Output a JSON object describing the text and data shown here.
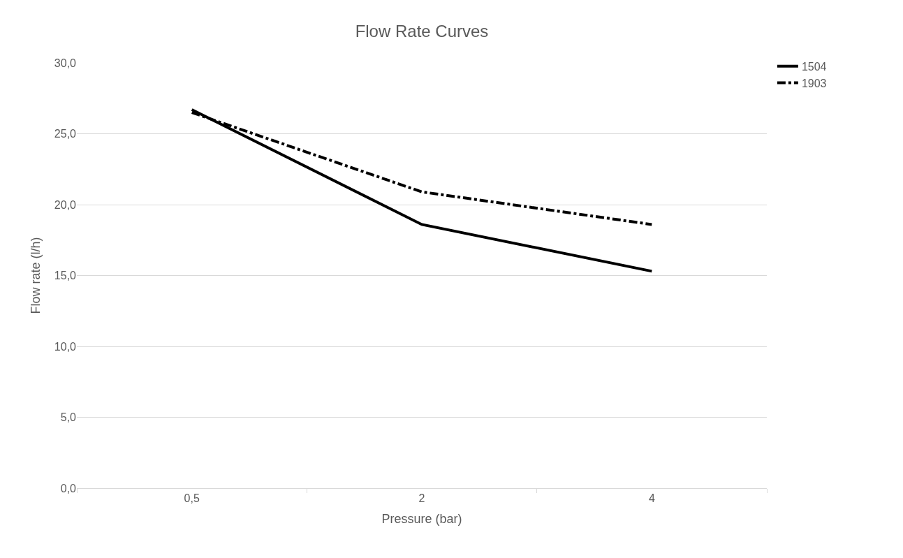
{
  "chart_data": {
    "type": "line",
    "title": "Flow Rate Curves",
    "xlabel": "Pressure (bar)",
    "ylabel": "Flow rate (l/h)",
    "categories": [
      "0,5",
      "2",
      "4"
    ],
    "series": [
      {
        "name": "1504",
        "color": "#000000",
        "values": [
          26.7,
          18.6,
          15.3
        ],
        "line_style": "solid"
      },
      {
        "name": "1903",
        "color": "#000000",
        "values": [
          26.5,
          20.9,
          18.6
        ],
        "line_style": "dashdot"
      }
    ],
    "ylim": [
      0,
      30
    ],
    "yticks": [
      {
        "value": 0,
        "label": "0,0"
      },
      {
        "value": 5,
        "label": "5,0"
      },
      {
        "value": 10,
        "label": "10,0"
      },
      {
        "value": 15,
        "label": "15,0"
      },
      {
        "value": 20,
        "label": "20,0"
      },
      {
        "value": 25,
        "label": "25,0"
      },
      {
        "value": 30,
        "label": "30,0"
      }
    ],
    "grid": "y",
    "legend": "top right",
    "marker": "none"
  }
}
